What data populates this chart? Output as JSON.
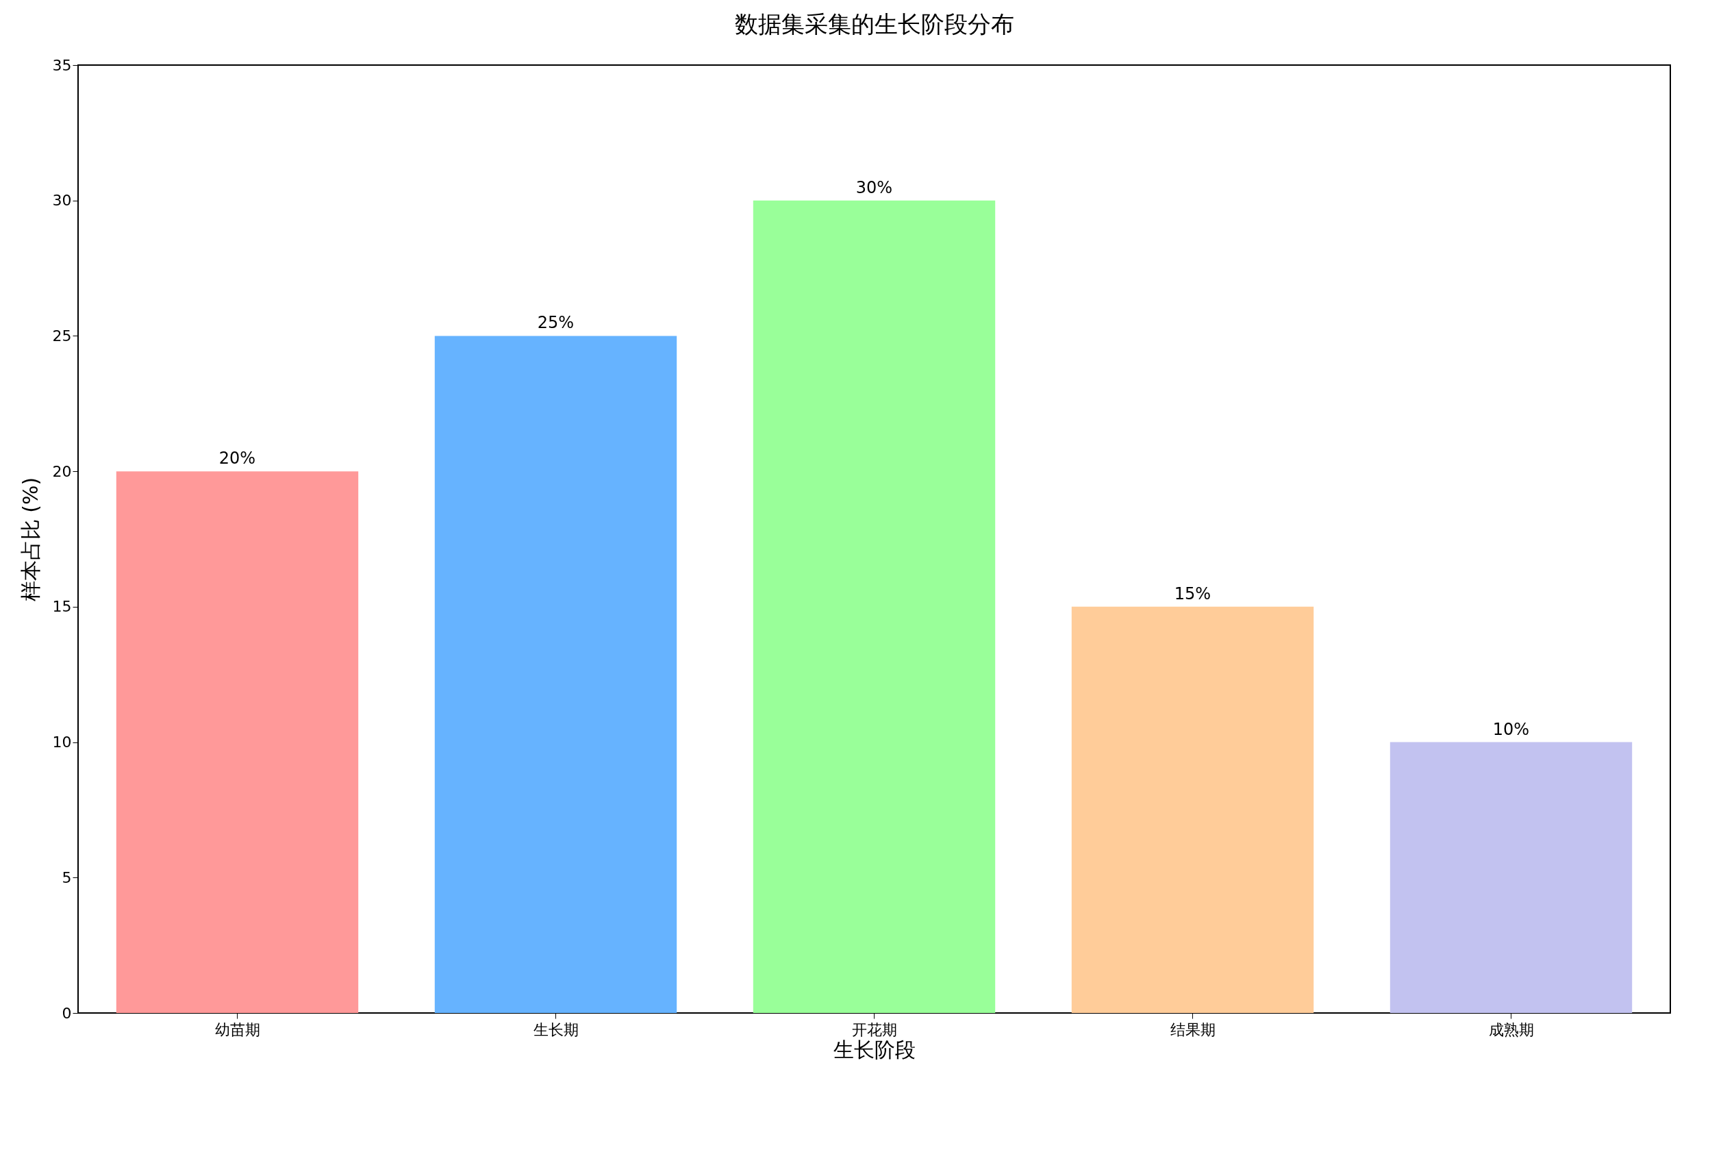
{
  "chart_data": {
    "type": "bar",
    "title": "数据集采集的生长阶段分布",
    "xlabel": "生长阶段",
    "ylabel": "样本占比 (%)",
    "categories": [
      "幼苗期",
      "生长期",
      "开花期",
      "结果期",
      "成熟期"
    ],
    "values": [
      20,
      25,
      30,
      15,
      10
    ],
    "colors": [
      "#ff9999",
      "#66b3ff",
      "#99ff99",
      "#ffcc99",
      "#c2c2f0"
    ],
    "value_labels": [
      "20%",
      "25%",
      "30%",
      "15%",
      "10%"
    ],
    "ylim": [
      0,
      35
    ],
    "yticks": [
      0,
      5,
      10,
      15,
      20,
      25,
      30,
      35
    ],
    "grid": false
  }
}
